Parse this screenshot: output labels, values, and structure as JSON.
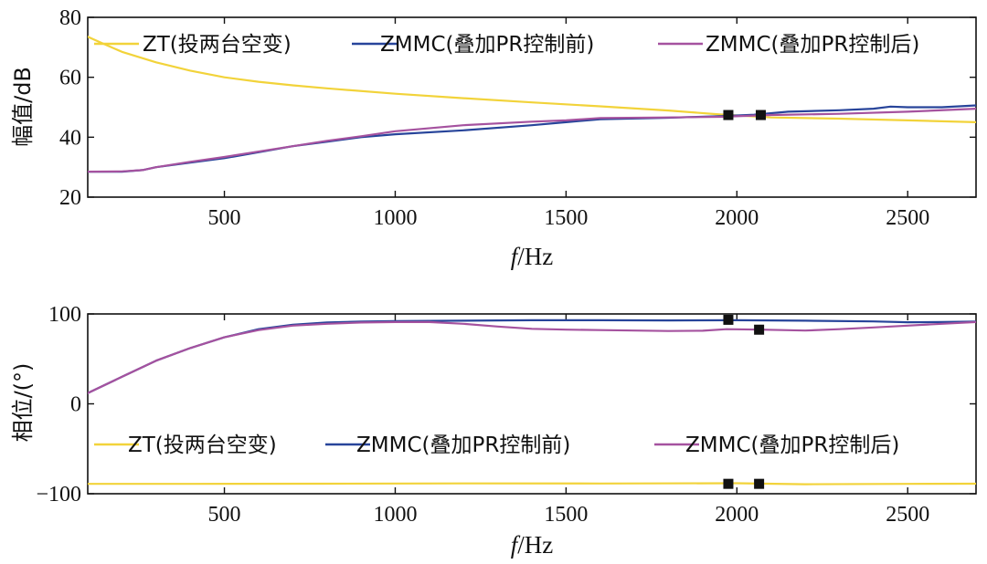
{
  "colors": {
    "zt": "#F2D33A",
    "before": "#27449A",
    "after": "#A5529F",
    "marker": "#111111"
  },
  "chart_data": [
    {
      "type": "line",
      "title": "",
      "xlabel_italic": "f",
      "xlabel_rest": "/Hz",
      "ylabel": "幅值/dB",
      "xlim": [
        100,
        2700
      ],
      "ylim": [
        20,
        80
      ],
      "xticks": [
        500,
        1000,
        1500,
        2000,
        2500
      ],
      "yticks": [
        20,
        40,
        60,
        80
      ],
      "legend": "top",
      "series": [
        {
          "name": "ZT(投两台空变)",
          "color_key": "zt",
          "x": [
            100,
            150,
            200,
            300,
            400,
            500,
            600,
            700,
            800,
            1000,
            1200,
            1400,
            1600,
            1800,
            1950,
            2100,
            2300,
            2500,
            2700
          ],
          "y": [
            73.5,
            71,
            68.5,
            65,
            62.2,
            60,
            58.5,
            57.3,
            56.3,
            54.5,
            53,
            51.6,
            50.3,
            48.9,
            47.6,
            46.6,
            46.2,
            45.6,
            45
          ]
        },
        {
          "name": "ZMMC(叠加PR控制前)",
          "color_key": "before",
          "x": [
            100,
            200,
            260,
            300,
            400,
            500,
            600,
            700,
            800,
            900,
            1000,
            1200,
            1400,
            1500,
            1600,
            1800,
            1950,
            2050,
            2150,
            2300,
            2400,
            2450,
            2500,
            2600,
            2700
          ],
          "y": [
            28.5,
            28.5,
            29,
            30,
            31.5,
            33,
            35,
            37,
            38.5,
            40,
            41,
            42.3,
            44,
            45,
            46,
            46.5,
            47,
            47.5,
            48.5,
            49,
            49.5,
            50.2,
            50,
            50,
            50.6
          ]
        },
        {
          "name": "ZMMC(叠加PR控制后)",
          "color_key": "after",
          "x": [
            100,
            200,
            260,
            300,
            400,
            500,
            600,
            700,
            800,
            900,
            1000,
            1200,
            1400,
            1500,
            1600,
            1800,
            1950,
            2100,
            2300,
            2500,
            2700
          ],
          "y": [
            28.5,
            28.6,
            29,
            30,
            31.8,
            33.4,
            35.2,
            37,
            38.8,
            40.3,
            42,
            44,
            45.2,
            45.6,
            46.4,
            46.6,
            46.8,
            47.4,
            47.8,
            48.5,
            49.5
          ]
        }
      ],
      "markers": [
        {
          "x": 1975,
          "y": 47.4
        },
        {
          "x": 2070,
          "y": 47.4
        }
      ]
    },
    {
      "type": "line",
      "title": "",
      "xlabel_italic": "f",
      "xlabel_rest": "/Hz",
      "ylabel": "相位/(°)",
      "xlim": [
        100,
        2700
      ],
      "ylim": [
        -100,
        100
      ],
      "xticks": [
        500,
        1000,
        1500,
        2000,
        2500
      ],
      "yticks": [
        -100,
        0,
        100
      ],
      "ytick_labels": [
        "−100",
        "0",
        "100"
      ],
      "legend": "bottom",
      "series": [
        {
          "name": "ZT(投两台空变)",
          "color_key": "zt",
          "x": [
            100,
            400,
            800,
            1200,
            1600,
            2000,
            2200,
            2500,
            2700
          ],
          "y": [
            -89,
            -89,
            -88.8,
            -88.5,
            -88.6,
            -88.3,
            -89.4,
            -89,
            -88.8
          ]
        },
        {
          "name": "ZMMC(叠加PR控制前)",
          "color_key": "before",
          "x": [
            100,
            200,
            300,
            400,
            500,
            600,
            700,
            800,
            900,
            1000,
            1200,
            1400,
            1600,
            1800,
            2000,
            2200,
            2400,
            2500,
            2600,
            2700
          ],
          "y": [
            12,
            30,
            48,
            62,
            74,
            83,
            88,
            90.5,
            91.5,
            92,
            92.5,
            93,
            93,
            92.8,
            93,
            92.5,
            91.7,
            90.8,
            91,
            91.5
          ]
        },
        {
          "name": "ZMMC(叠加PR控制后)",
          "color_key": "after",
          "x": [
            100,
            200,
            300,
            400,
            500,
            600,
            700,
            800,
            900,
            1000,
            1100,
            1200,
            1300,
            1400,
            1500,
            1600,
            1700,
            1800,
            1900,
            1970,
            2070,
            2200,
            2300,
            2400,
            2500,
            2600,
            2700
          ],
          "y": [
            12,
            30,
            48,
            62,
            74,
            82,
            87,
            89,
            90.5,
            91,
            91,
            89,
            86,
            83.5,
            82.5,
            82,
            81.5,
            81,
            81.3,
            83,
            82.5,
            81.5,
            83,
            85,
            87,
            89,
            91
          ]
        }
      ],
      "markers": [
        {
          "x": 1975,
          "y": 93.5
        },
        {
          "x": 2065,
          "y": 82.5
        },
        {
          "x": 1975,
          "y": -89
        },
        {
          "x": 2065,
          "y": -89
        }
      ]
    }
  ]
}
